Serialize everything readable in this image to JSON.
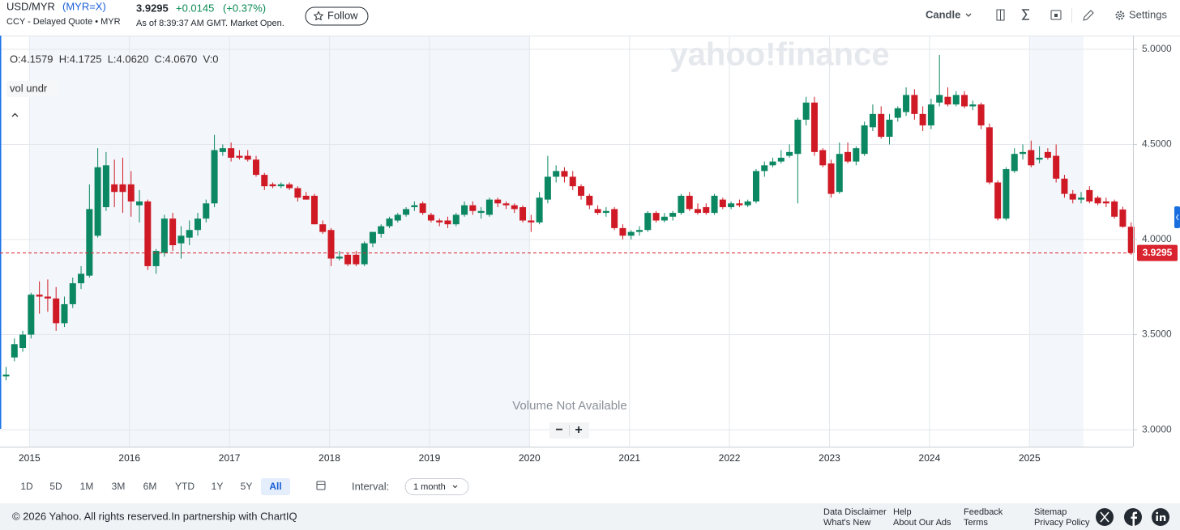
{
  "header": {
    "symbol": "USD/MYR",
    "ticker": "(MYR=X)",
    "price": "3.9295",
    "change": "+0.0145",
    "change_percent": "(+0.37%)",
    "quote_info": "CCY - Delayed Quote • MYR",
    "as_of": "As of 8:39:37 AM GMT. Market Open.",
    "follow": "Follow"
  },
  "toolbar": {
    "chart_type": "Candle",
    "settings": "Settings"
  },
  "chart_data": {
    "type": "candlestick",
    "watermark": "yahoo!finance",
    "ohlc_readout": "O:4.1579  H:4.1725  L:4.0620  C:4.0670  V:0",
    "study": "vol undr",
    "volume_note": "Volume Not Available",
    "zoom_out": "−",
    "zoom_in": "+",
    "categories": [
      null,
      null,
      null,
      "2015",
      null,
      null,
      null,
      null,
      null,
      null,
      null,
      null,
      null,
      null,
      null,
      "2016",
      null,
      null,
      null,
      null,
      null,
      null,
      null,
      null,
      null,
      null,
      null,
      "2017",
      null,
      null,
      null,
      null,
      null,
      null,
      null,
      null,
      null,
      null,
      null,
      "2018",
      null,
      null,
      null,
      null,
      null,
      null,
      null,
      null,
      null,
      null,
      null,
      "2019",
      null,
      null,
      null,
      null,
      null,
      null,
      null,
      null,
      null,
      null,
      null,
      "2020",
      null,
      null,
      null,
      null,
      null,
      null,
      null,
      null,
      null,
      null,
      null,
      "2021",
      null,
      null,
      null,
      null,
      null,
      null,
      null,
      null,
      null,
      null,
      null,
      "2022",
      null,
      null,
      null,
      null,
      null,
      null,
      null,
      null,
      null,
      null,
      null,
      "2023",
      null,
      null,
      null,
      null,
      null,
      null,
      null,
      null,
      null,
      null,
      null,
      "2024",
      null,
      null,
      null,
      null,
      null,
      null,
      null,
      null,
      null,
      null,
      null,
      "2025",
      null,
      null,
      null,
      null,
      null,
      null,
      null,
      null,
      null,
      null,
      null,
      null
    ],
    "open": [
      3.28,
      3.38,
      3.43,
      3.5,
      3.71,
      3.7,
      3.69,
      3.56,
      3.66,
      3.77,
      3.81,
      4.02,
      4.17,
      4.29,
      4.29,
      4.29,
      4.18,
      4.2,
      3.86,
      3.93,
      4.11,
      3.98,
      4.01,
      4.05,
      4.11,
      4.19,
      4.46,
      4.48,
      4.44,
      4.44,
      4.42,
      4.34,
      4.29,
      4.28,
      4.29,
      4.27,
      4.23,
      4.23,
      4.08,
      4.05,
      3.9,
      3.92,
      3.92,
      3.87,
      3.98,
      4.03,
      4.07,
      4.1,
      4.13,
      4.17,
      4.19,
      4.13,
      4.1,
      4.1,
      4.08,
      4.13,
      4.18,
      4.14,
      4.13,
      4.21,
      4.19,
      4.18,
      4.17,
      4.1,
      4.09,
      4.21,
      4.33,
      4.36,
      4.33,
      4.28,
      4.23,
      4.16,
      4.14,
      4.16,
      4.06,
      4.02,
      4.04,
      4.05,
      4.14,
      4.1,
      4.12,
      4.14,
      4.23,
      4.16,
      4.17,
      4.14,
      4.21,
      4.17,
      4.19,
      4.18,
      4.2,
      4.36,
      4.39,
      4.41,
      4.44,
      4.45,
      4.63,
      4.72,
      4.47,
      4.4,
      4.25,
      4.46,
      4.41,
      4.45,
      4.59,
      4.66,
      4.54,
      4.64,
      4.67,
      4.76,
      4.66,
      4.6,
      4.72,
      4.75,
      4.71,
      4.76,
      4.7,
      4.71,
      4.59,
      4.3,
      4.11,
      4.36,
      4.45,
      4.47,
      4.42,
      4.46,
      4.44,
      4.32,
      4.24,
      4.21,
      4.26,
      4.22,
      4.2,
      4.2,
      4.1579,
      4.067
    ],
    "high": [
      3.33,
      3.48,
      3.52,
      3.72,
      3.78,
      3.79,
      3.75,
      3.7,
      3.8,
      3.86,
      4.29,
      4.48,
      4.46,
      4.42,
      4.43,
      4.36,
      4.26,
      4.21,
      3.95,
      4.13,
      4.14,
      4.07,
      4.1,
      4.14,
      4.21,
      4.55,
      4.5,
      4.51,
      4.47,
      4.47,
      4.44,
      4.35,
      4.3,
      4.3,
      4.3,
      4.28,
      4.25,
      4.24,
      4.1,
      4.06,
      3.94,
      3.93,
      3.94,
      3.99,
      4.03,
      4.08,
      4.12,
      4.14,
      4.17,
      4.2,
      4.2,
      4.14,
      4.11,
      4.12,
      4.14,
      4.2,
      4.2,
      4.17,
      4.22,
      4.22,
      4.2,
      4.19,
      4.18,
      4.13,
      4.25,
      4.44,
      4.39,
      4.38,
      4.36,
      4.29,
      4.24,
      4.18,
      4.17,
      4.17,
      4.08,
      4.05,
      4.07,
      4.15,
      4.15,
      4.14,
      4.15,
      4.24,
      4.25,
      4.19,
      4.19,
      4.24,
      4.22,
      4.2,
      4.21,
      4.21,
      4.37,
      4.41,
      4.43,
      4.47,
      4.5,
      4.64,
      4.75,
      4.75,
      4.48,
      4.42,
      4.51,
      4.51,
      4.49,
      4.62,
      4.71,
      4.7,
      4.66,
      4.7,
      4.8,
      4.79,
      4.7,
      4.74,
      4.97,
      4.8,
      4.78,
      4.78,
      4.73,
      4.72,
      4.61,
      4.31,
      4.38,
      4.48,
      4.5,
      4.52,
      4.49,
      4.48,
      4.5,
      4.34,
      4.26,
      4.25,
      4.28,
      4.23,
      4.22,
      4.21,
      4.1725,
      4.09
    ],
    "low": [
      3.26,
      3.36,
      3.41,
      3.48,
      3.61,
      3.62,
      3.52,
      3.54,
      3.64,
      3.74,
      3.8,
      4.01,
      4.15,
      4.17,
      4.14,
      4.12,
      4.09,
      3.84,
      3.82,
      3.91,
      3.94,
      3.9,
      3.97,
      4.02,
      4.09,
      4.17,
      4.44,
      4.41,
      4.42,
      4.41,
      4.33,
      4.26,
      4.27,
      4.27,
      4.26,
      4.2,
      4.21,
      4.08,
      4.03,
      3.86,
      3.89,
      3.86,
      3.86,
      3.86,
      3.96,
      4.01,
      4.06,
      4.09,
      4.12,
      4.15,
      4.13,
      4.09,
      4.07,
      4.06,
      4.07,
      4.12,
      4.13,
      4.11,
      4.12,
      4.17,
      4.16,
      4.14,
      4.09,
      4.04,
      4.08,
      4.19,
      4.3,
      4.3,
      4.26,
      4.21,
      4.16,
      4.13,
      4.12,
      4.05,
      4.0,
      4.0,
      4.02,
      4.04,
      4.09,
      4.09,
      4.1,
      4.13,
      4.15,
      4.13,
      4.13,
      4.13,
      4.16,
      4.16,
      4.17,
      4.17,
      4.19,
      4.33,
      4.38,
      4.4,
      4.43,
      4.19,
      4.6,
      4.44,
      4.38,
      4.22,
      4.24,
      4.4,
      4.39,
      4.44,
      4.57,
      4.53,
      4.5,
      4.62,
      4.65,
      4.63,
      4.57,
      4.58,
      4.7,
      4.7,
      4.7,
      4.69,
      4.68,
      4.58,
      4.29,
      4.1,
      4.1,
      4.35,
      4.42,
      4.38,
      4.4,
      4.42,
      4.3,
      4.22,
      4.19,
      4.19,
      4.19,
      4.18,
      4.17,
      4.11,
      4.062,
      3.92
    ],
    "close": [
      3.29,
      3.45,
      3.5,
      3.71,
      3.7,
      3.69,
      3.56,
      3.66,
      3.77,
      3.82,
      4.16,
      4.38,
      4.39,
      4.25,
      4.25,
      4.2,
      4.2,
      3.86,
      3.94,
      4.11,
      3.97,
      4.02,
      4.05,
      4.11,
      4.19,
      4.47,
      4.48,
      4.43,
      4.43,
      4.42,
      4.34,
      4.28,
      4.28,
      4.29,
      4.27,
      4.22,
      4.21,
      4.08,
      4.04,
      3.9,
      3.91,
      3.87,
      3.87,
      3.98,
      4.04,
      4.07,
      4.11,
      4.13,
      4.16,
      4.18,
      4.14,
      4.1,
      4.09,
      4.08,
      4.13,
      4.18,
      4.15,
      4.15,
      4.21,
      4.19,
      4.18,
      4.16,
      4.1,
      4.09,
      4.22,
      4.33,
      4.36,
      4.33,
      4.28,
      4.23,
      4.18,
      4.14,
      4.15,
      4.06,
      4.02,
      4.04,
      4.05,
      4.14,
      4.1,
      4.12,
      4.14,
      4.23,
      4.16,
      4.14,
      4.14,
      4.23,
      4.17,
      4.19,
      4.18,
      4.2,
      4.36,
      4.39,
      4.41,
      4.43,
      4.46,
      4.63,
      4.72,
      4.46,
      4.39,
      4.24,
      4.45,
      4.41,
      4.48,
      4.6,
      4.66,
      4.54,
      4.63,
      4.69,
      4.76,
      4.66,
      4.6,
      4.71,
      4.76,
      4.71,
      4.76,
      4.7,
      4.71,
      4.6,
      4.3,
      4.11,
      4.37,
      4.45,
      4.46,
      4.39,
      4.43,
      4.43,
      4.32,
      4.24,
      4.21,
      4.22,
      4.2,
      4.19,
      4.19,
      4.12,
      4.067,
      3.9295
    ],
    "up_color": "#0b8761",
    "down_color": "#cf1a26",
    "last_price": 3.9295,
    "last_price_color": "#d9232f",
    "ylim": [
      2.911,
      5.072
    ],
    "yticks": [
      {
        "value": 3,
        "label": "3.0000"
      },
      {
        "value": 3.5,
        "label": "3.5000"
      },
      {
        "value": 4,
        "label": "4.0000"
      },
      {
        "value": 4.5,
        "label": "4.5000"
      },
      {
        "value": 5,
        "label": "5.0000"
      }
    ],
    "grid": true,
    "y_axis_side": "right"
  },
  "range_buttons": [
    "1D",
    "5D",
    "1M",
    "3M",
    "6M",
    "YTD",
    "1Y",
    "5Y",
    "All"
  ],
  "active_range": "All",
  "interval_label": "Interval:",
  "interval": "1 month",
  "footer": {
    "copyright": "© 2026 Yahoo. All rights reserved.In partnership with ChartIQ",
    "links": [
      [
        "Data Disclaimer",
        "What's New"
      ],
      [
        "Help",
        "About Our Ads"
      ],
      [
        "Feedback",
        "Terms"
      ],
      [
        "Sitemap",
        "Privacy Policy"
      ]
    ]
  }
}
